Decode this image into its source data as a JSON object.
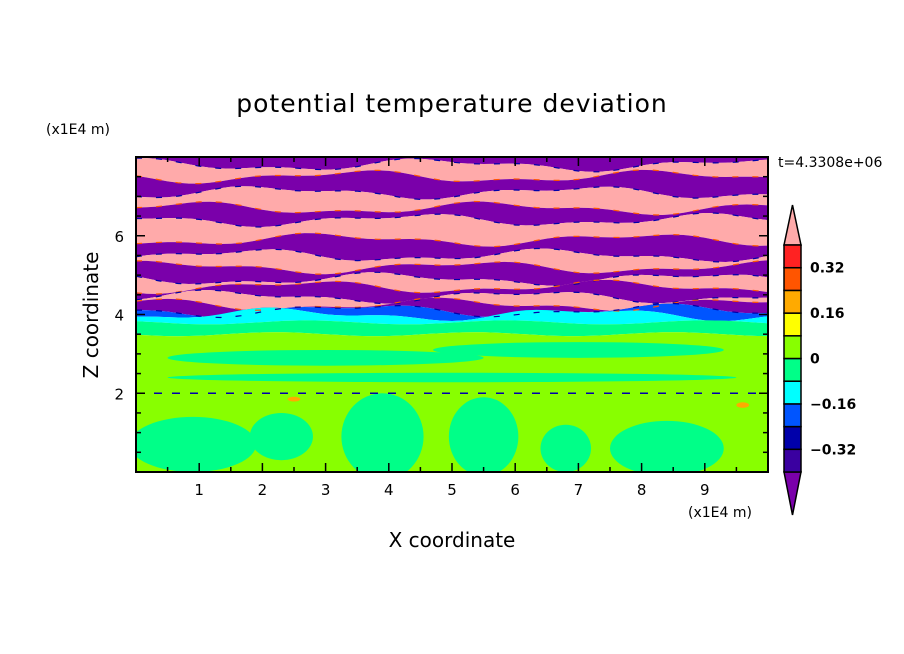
{
  "chart_data": {
    "type": "heatmap",
    "title": "potential temperature deviation",
    "xlabel": "X coordinate",
    "ylabel": "Z coordinate",
    "x_unit": "(x1E4 m)",
    "y_unit": "(x1E4 m)",
    "time_label": "t=4.3308e+06",
    "xlim": [
      0,
      10
    ],
    "ylim": [
      0,
      8
    ],
    "xticks": [
      "1",
      "2",
      "3",
      "4",
      "5",
      "6",
      "7",
      "8",
      "9"
    ],
    "xtick_values": [
      1,
      2,
      3,
      4,
      5,
      6,
      7,
      8,
      9
    ],
    "yticks": [
      "2",
      "4",
      "6"
    ],
    "ytick_values": [
      2,
      4,
      6
    ],
    "colorbar": {
      "levels": [
        -0.4,
        -0.32,
        -0.24,
        -0.16,
        -0.08,
        0,
        0.08,
        0.16,
        0.24,
        0.32,
        0.4
      ],
      "labels": [
        "0.32",
        "0.16",
        "0",
        "-0.16",
        "-0.32"
      ],
      "label_values": [
        0.32,
        0.16,
        0,
        -0.16,
        -0.32
      ],
      "colors": [
        "#7a00aa",
        "#3a00a0",
        "#0000aa",
        "#0055ff",
        "#00ffff",
        "#00ff88",
        "#88ff00",
        "#ffff00",
        "#ffaa00",
        "#ff5500",
        "#ff2222",
        "#ffaaaa"
      ],
      "extend": "both"
    },
    "bands": [
      {
        "z": [
          7.8,
          8.0
        ],
        "value": -0.5
      },
      {
        "z": [
          7.5,
          7.8
        ],
        "value": 0.5
      },
      {
        "z": [
          7.1,
          7.5
        ],
        "value": -0.5
      },
      {
        "z": [
          6.7,
          7.1
        ],
        "value": 0.5
      },
      {
        "z": [
          6.4,
          6.7
        ],
        "value": -0.5
      },
      {
        "z": [
          5.9,
          6.4
        ],
        "value": 0.5
      },
      {
        "z": [
          5.5,
          5.9
        ],
        "value": -0.5
      },
      {
        "z": [
          5.2,
          5.5
        ],
        "value": 0.5
      },
      {
        "z": [
          4.9,
          5.2
        ],
        "value": -0.5
      },
      {
        "z": [
          4.7,
          4.9
        ],
        "value": 0.5
      },
      {
        "z": [
          4.45,
          4.7
        ],
        "value": -0.5
      },
      {
        "z": [
          4.25,
          4.45
        ],
        "value": 0.5
      },
      {
        "z": [
          4.1,
          4.25
        ],
        "value": -0.5
      },
      {
        "z": [
          4.0,
          4.1
        ],
        "value": -0.2
      },
      {
        "z": [
          3.8,
          4.0
        ],
        "value": -0.1
      },
      {
        "z": [
          3.5,
          3.8
        ],
        "value": -0.04
      },
      {
        "z": [
          0,
          3.5
        ],
        "value": 0.04
      }
    ],
    "blobs": [
      {
        "x": 0.9,
        "z": 0.7,
        "rx": 1.0,
        "rz": 0.7,
        "value": -0.04
      },
      {
        "x": 2.3,
        "z": 0.9,
        "rx": 0.5,
        "rz": 0.6,
        "value": -0.04
      },
      {
        "x": 3.9,
        "z": 0.9,
        "rx": 0.65,
        "rz": 1.1,
        "value": -0.04
      },
      {
        "x": 5.5,
        "z": 0.9,
        "rx": 0.55,
        "rz": 1.0,
        "value": -0.04
      },
      {
        "x": 6.8,
        "z": 0.6,
        "rx": 0.4,
        "rz": 0.6,
        "value": -0.04
      },
      {
        "x": 8.4,
        "z": 0.6,
        "rx": 0.9,
        "rz": 0.7,
        "value": -0.04
      },
      {
        "x": 3.0,
        "z": 2.9,
        "rx": 2.5,
        "rz": 0.2,
        "value": -0.04
      },
      {
        "x": 7.0,
        "z": 3.1,
        "rx": 2.3,
        "rz": 0.2,
        "value": -0.04
      },
      {
        "x": 5.0,
        "z": 2.4,
        "rx": 4.5,
        "rz": 0.12,
        "value": -0.04
      },
      {
        "x": 9.6,
        "z": 1.7,
        "rx": 0.1,
        "rz": 0.07,
        "value": 0.2
      },
      {
        "x": 2.5,
        "z": 1.85,
        "rx": 0.1,
        "rz": 0.06,
        "value": 0.2
      }
    ]
  }
}
